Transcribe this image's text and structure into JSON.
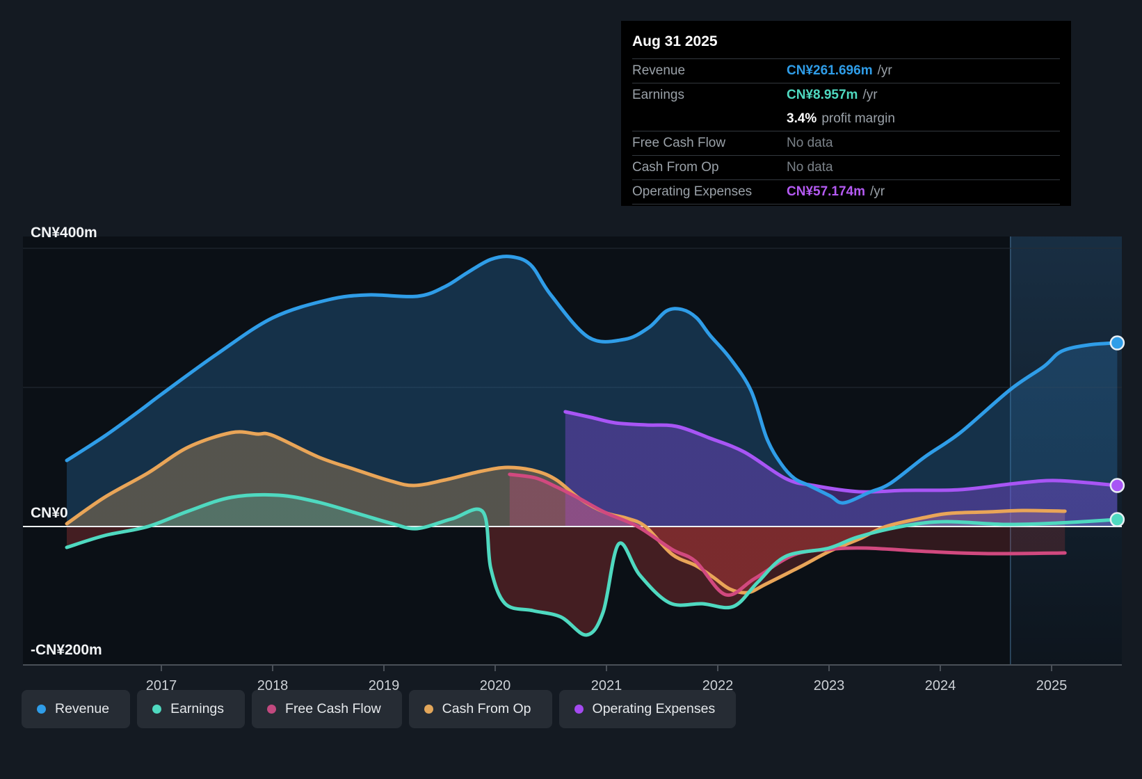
{
  "tooltip": {
    "date": "Aug 31 2025",
    "rows": [
      {
        "label": "Revenue",
        "value": "CN¥261.696m",
        "suffix": "/yr",
        "color": "#2f9de8",
        "bold": true
      },
      {
        "label": "Earnings",
        "value": "CN¥8.957m",
        "suffix": "/yr",
        "color": "#4fd9c0",
        "bold": true
      },
      {
        "label": "",
        "value": "3.4%",
        "suffix": "profit margin",
        "color": "#ffffff",
        "bold": true
      },
      {
        "label": "Free Cash Flow",
        "value": "No data",
        "suffix": "",
        "color": "#7b8289",
        "bold": false
      },
      {
        "label": "Cash From Op",
        "value": "No data",
        "suffix": "",
        "color": "#7b8289",
        "bold": false
      },
      {
        "label": "Operating Expenses",
        "value": "CN¥57.174m",
        "suffix": "/yr",
        "color": "#b45af2",
        "bold": true
      }
    ]
  },
  "legend": {
    "items": [
      {
        "label": "Revenue",
        "color": "#2f9de8"
      },
      {
        "label": "Earnings",
        "color": "#4fd9c0"
      },
      {
        "label": "Free Cash Flow",
        "color": "#c2497f"
      },
      {
        "label": "Cash From Op",
        "color": "#e2a65a"
      },
      {
        "label": "Operating Expenses",
        "color": "#a44af0"
      }
    ]
  },
  "chart_data": {
    "type": "area",
    "unit": "CN¥ millions per year",
    "title": "",
    "xlabel": "",
    "ylabel": "CN¥",
    "ylim": [
      -200,
      400
    ],
    "x_ticks": [
      2017,
      2018,
      2019,
      2020,
      2021,
      2022,
      2023,
      2024,
      2025
    ],
    "y_axis": {
      "top_label": "CN¥400m",
      "zero_label": "CN¥0",
      "bottom_label": "-CN¥200m",
      "gridline_values": [
        400,
        200
      ]
    },
    "divider_year": 2024.63,
    "series": [
      {
        "name": "Revenue",
        "color": "#2f9de8",
        "fill_above": "rgba(42,118,180,0.32)",
        "fill_below": "rgba(42,118,180,0.32)",
        "end_marker": true,
        "points": [
          [
            2016.15,
            95
          ],
          [
            2016.49,
            130
          ],
          [
            2016.81,
            167
          ],
          [
            2017.0,
            190
          ],
          [
            2017.5,
            248
          ],
          [
            2018.0,
            300
          ],
          [
            2018.5,
            326
          ],
          [
            2018.86,
            333
          ],
          [
            2019.3,
            331
          ],
          [
            2019.55,
            345
          ],
          [
            2019.75,
            365
          ],
          [
            2019.96,
            384
          ],
          [
            2020.14,
            388
          ],
          [
            2020.32,
            376
          ],
          [
            2020.5,
            333
          ],
          [
            2020.84,
            272
          ],
          [
            2021.16,
            269
          ],
          [
            2021.38,
            286
          ],
          [
            2021.54,
            310
          ],
          [
            2021.68,
            312
          ],
          [
            2021.81,
            300
          ],
          [
            2021.93,
            275
          ],
          [
            2022.11,
            242
          ],
          [
            2022.3,
            195
          ],
          [
            2022.44,
            127
          ],
          [
            2022.57,
            90
          ],
          [
            2022.69,
            69
          ],
          [
            2022.82,
            59
          ],
          [
            2023.01,
            44
          ],
          [
            2023.13,
            34
          ],
          [
            2023.36,
            49
          ],
          [
            2023.55,
            62
          ],
          [
            2023.86,
            100
          ],
          [
            2024.18,
            135
          ],
          [
            2024.63,
            197
          ],
          [
            2024.93,
            230
          ],
          [
            2025.09,
            252
          ],
          [
            2025.33,
            261
          ],
          [
            2025.59,
            264
          ]
        ]
      },
      {
        "name": "Cash From Op",
        "color": "#e9a558",
        "fill_above": "rgba(233,165,88,0.30)",
        "fill_below": "rgba(200,62,62,0.26)",
        "end_marker": false,
        "points": [
          [
            2016.15,
            4
          ],
          [
            2016.49,
            42
          ],
          [
            2016.88,
            77
          ],
          [
            2017.24,
            114
          ],
          [
            2017.63,
            135
          ],
          [
            2017.86,
            133
          ],
          [
            2018.0,
            131
          ],
          [
            2018.41,
            100
          ],
          [
            2018.74,
            82
          ],
          [
            2019.05,
            66
          ],
          [
            2019.27,
            59
          ],
          [
            2019.55,
            67
          ],
          [
            2019.86,
            79
          ],
          [
            2020.11,
            85
          ],
          [
            2020.36,
            80
          ],
          [
            2020.55,
            67
          ],
          [
            2020.76,
            40
          ],
          [
            2020.99,
            20
          ],
          [
            2021.18,
            12
          ],
          [
            2021.35,
            0
          ],
          [
            2021.59,
            -40
          ],
          [
            2021.8,
            -56
          ],
          [
            2021.96,
            -73
          ],
          [
            2022.11,
            -90
          ],
          [
            2022.27,
            -95
          ],
          [
            2022.43,
            -83
          ],
          [
            2022.74,
            -58
          ],
          [
            2023.0,
            -36
          ],
          [
            2023.27,
            -18
          ],
          [
            2023.51,
            0
          ],
          [
            2023.86,
            13
          ],
          [
            2024.09,
            19
          ],
          [
            2024.43,
            21
          ],
          [
            2024.74,
            23
          ],
          [
            2025.12,
            22
          ]
        ]
      },
      {
        "name": "Earnings",
        "color": "#4fd9c0",
        "fill_above": "rgba(79,217,192,0.22)",
        "fill_below": "rgba(200,62,62,0.30)",
        "end_marker": true,
        "points": [
          [
            2016.15,
            -30
          ],
          [
            2016.49,
            -13
          ],
          [
            2016.88,
            0
          ],
          [
            2017.24,
            22
          ],
          [
            2017.63,
            42
          ],
          [
            2018.05,
            45
          ],
          [
            2018.41,
            35
          ],
          [
            2018.8,
            17
          ],
          [
            2019.08,
            4
          ],
          [
            2019.3,
            -3
          ],
          [
            2019.61,
            11
          ],
          [
            2019.89,
            21
          ],
          [
            2019.96,
            -60
          ],
          [
            2020.09,
            -111
          ],
          [
            2020.34,
            -121
          ],
          [
            2020.59,
            -130
          ],
          [
            2020.82,
            -156
          ],
          [
            2020.97,
            -123
          ],
          [
            2021.11,
            -25
          ],
          [
            2021.3,
            -70
          ],
          [
            2021.57,
            -110
          ],
          [
            2021.86,
            -111
          ],
          [
            2022.14,
            -115
          ],
          [
            2022.36,
            -80
          ],
          [
            2022.61,
            -43
          ],
          [
            2023.0,
            -31
          ],
          [
            2023.26,
            -15
          ],
          [
            2023.68,
            1
          ],
          [
            2024.05,
            7
          ],
          [
            2024.59,
            3
          ],
          [
            2025.05,
            5
          ],
          [
            2025.59,
            10
          ]
        ]
      },
      {
        "name": "Operating Expenses",
        "color": "#a855f5",
        "fill_above": "rgba(139,76,230,0.38)",
        "fill_below": "rgba(139,76,230,0.38)",
        "end_marker": true,
        "points": [
          [
            2020.63,
            165
          ],
          [
            2020.86,
            157
          ],
          [
            2021.08,
            149
          ],
          [
            2021.36,
            146
          ],
          [
            2021.63,
            144
          ],
          [
            2021.93,
            127
          ],
          [
            2022.24,
            107
          ],
          [
            2022.61,
            69
          ],
          [
            2022.86,
            59
          ],
          [
            2023.27,
            50
          ],
          [
            2023.68,
            52
          ],
          [
            2024.18,
            53
          ],
          [
            2024.68,
            62
          ],
          [
            2025.05,
            66
          ],
          [
            2025.59,
            59
          ]
        ]
      },
      {
        "name": "Free Cash Flow",
        "color": "#d1497f",
        "fill_above": "rgba(209,73,127,0.32)",
        "fill_below": "rgba(200,62,62,0.20)",
        "end_marker": false,
        "points": [
          [
            2020.13,
            75
          ],
          [
            2020.36,
            70
          ],
          [
            2020.55,
            57
          ],
          [
            2020.76,
            40
          ],
          [
            2020.99,
            20
          ],
          [
            2021.28,
            0
          ],
          [
            2021.59,
            -33
          ],
          [
            2021.8,
            -50
          ],
          [
            2022.07,
            -98
          ],
          [
            2022.33,
            -75
          ],
          [
            2022.68,
            -41
          ],
          [
            2023.0,
            -33
          ],
          [
            2023.33,
            -31
          ],
          [
            2023.89,
            -36
          ],
          [
            2024.43,
            -39
          ],
          [
            2025.12,
            -38
          ]
        ]
      }
    ]
  }
}
